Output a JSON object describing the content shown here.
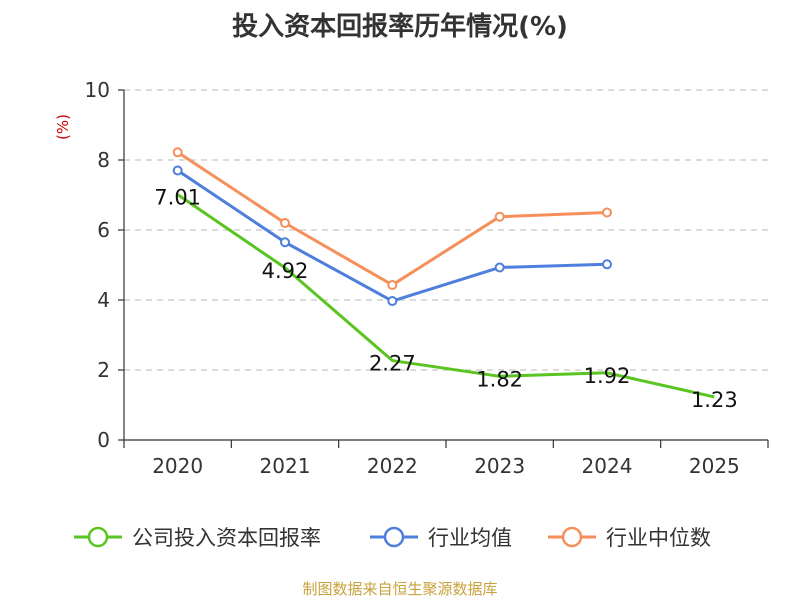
{
  "title": "投入资本回报率历年情况(%)",
  "source": "制图数据来自恒生聚源数据库",
  "chart_data": {
    "type": "line",
    "title": "投入资本回报率历年情况(%)",
    "ylabel": "(%)",
    "ylim": [
      0,
      10
    ],
    "yticks": [
      "0",
      "2",
      "4",
      "6",
      "8",
      "10"
    ],
    "grid": true,
    "legend_position": "bottom",
    "categories": [
      "2020",
      "2021",
      "2022",
      "2023",
      "2024",
      "2025"
    ],
    "series": [
      {
        "name": "公司投入资本回报率",
        "color": "#5ac420",
        "values": [
          7.01,
          4.92,
          2.27,
          1.82,
          1.92,
          1.23
        ],
        "labels": [
          "7.01",
          "4.92",
          "2.27",
          "1.82",
          "1.92",
          "1.23"
        ]
      },
      {
        "name": "行业均值",
        "color": "#4e7fdc",
        "values": [
          7.7,
          5.65,
          3.97,
          4.93,
          5.02,
          null
        ]
      },
      {
        "name": "行业中位数",
        "color": "#f68f5a",
        "values": [
          8.22,
          6.2,
          4.43,
          6.38,
          6.5,
          null
        ]
      }
    ]
  }
}
